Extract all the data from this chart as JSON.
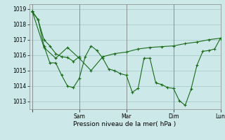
{
  "background_color": "#cce8e8",
  "line_color": "#1a6b1a",
  "grid_color": "#aacccc",
  "xlabel": "Pression niveau de la mer( hPa )",
  "ylim": [
    1012.5,
    1019.3
  ],
  "yticks": [
    1013,
    1014,
    1015,
    1016,
    1017,
    1018,
    1019
  ],
  "xlim": [
    -3,
    175
  ],
  "day_positions": [
    0,
    48,
    96,
    144,
    192
  ],
  "day_labels": [
    "",
    "Sam",
    "Mar",
    "Dim",
    "Lun"
  ],
  "series1_x": [
    0,
    6,
    12,
    18,
    24,
    30,
    36,
    42,
    48,
    54,
    60,
    66,
    72,
    78,
    84,
    90,
    96,
    102,
    108,
    114,
    120,
    126,
    132,
    138,
    144,
    150,
    156,
    162,
    168,
    174,
    180,
    186,
    192
  ],
  "series1_y": [
    1018.8,
    1018.3,
    1016.6,
    1015.5,
    1015.5,
    1014.7,
    1014.0,
    1013.9,
    1014.5,
    1015.9,
    1016.6,
    1016.3,
    1015.8,
    1015.1,
    1015.0,
    1014.8,
    1014.7,
    1013.6,
    1013.85,
    1015.8,
    1015.8,
    1014.2,
    1014.1,
    1013.9,
    1013.85,
    1013.05,
    1012.75,
    1013.8,
    1015.35,
    1016.25,
    1016.3,
    1016.4,
    1017.1
  ],
  "series2_x": [
    0,
    12,
    24,
    36,
    48,
    60,
    72,
    84,
    96,
    108,
    120,
    132,
    144,
    156,
    168,
    180,
    192
  ],
  "series2_y": [
    1018.85,
    1016.5,
    1015.8,
    1016.5,
    1015.8,
    1015.0,
    1015.9,
    1016.1,
    1016.2,
    1016.4,
    1016.5,
    1016.55,
    1016.6,
    1016.75,
    1016.85,
    1017.0,
    1017.1
  ],
  "series3_x": [
    0,
    6,
    12,
    18,
    24,
    30,
    36,
    42,
    48
  ],
  "series3_y": [
    1018.85,
    1018.3,
    1017.0,
    1016.6,
    1016.1,
    1015.9,
    1015.85,
    1015.6,
    1015.9
  ]
}
